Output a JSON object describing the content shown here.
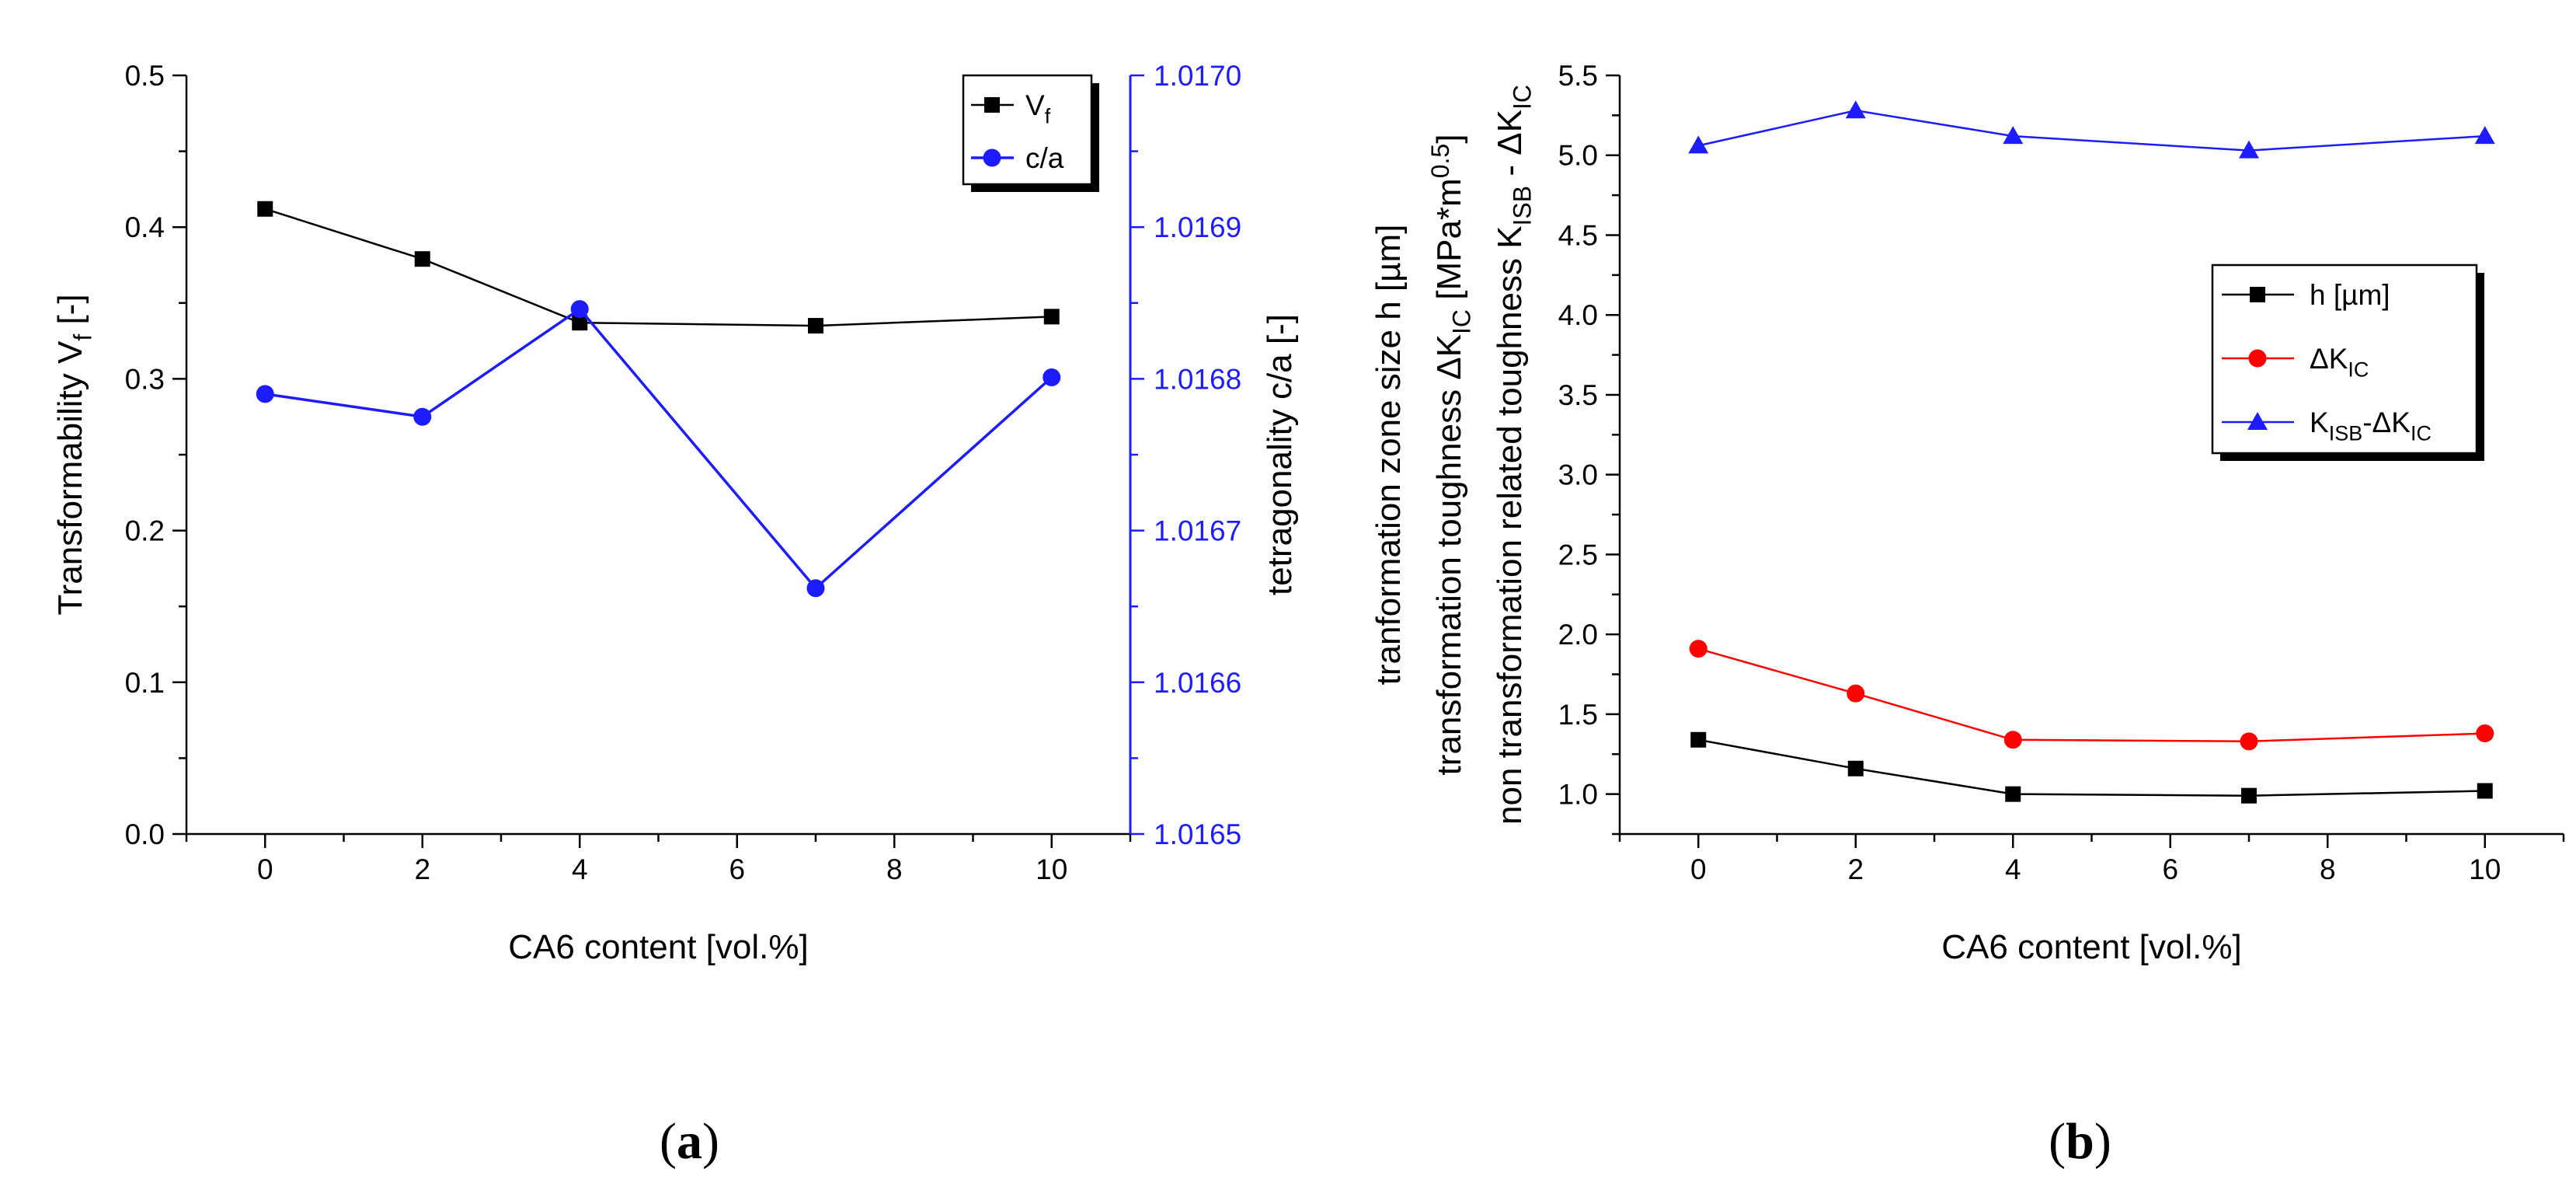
{
  "chart_data": [
    {
      "type": "line",
      "panel_label": {
        "open": "(",
        "letter": "a",
        "close": ")"
      },
      "xlabel": "CA6 content [vol.%]",
      "ylabel": {
        "main": "Transformability V",
        "sub": "f",
        "tail": " [-]"
      },
      "ylabel_right": "tetragonality c/a [-]",
      "x_ticks": [
        "0",
        "2",
        "4",
        "6",
        "8",
        "10"
      ],
      "y_ticks": [
        "0.0",
        "0.1",
        "0.2",
        "0.3",
        "0.4",
        "0.5"
      ],
      "y_ticks_right": [
        "1.0165",
        "1.0166",
        "1.0167",
        "1.0168",
        "1.0169",
        "1.0170"
      ],
      "xlim": [
        -1,
        11
      ],
      "ylim": [
        0,
        0.5
      ],
      "ylim_right": [
        1.0165,
        1.017
      ],
      "legend_position": "top-right",
      "series": [
        {
          "name": "V_f",
          "legend": {
            "main": "V",
            "sub": "f"
          },
          "axis": "left",
          "color": "#000000",
          "marker": "square",
          "x": [
            0,
            2,
            4,
            7,
            10
          ],
          "values": [
            0.412,
            0.379,
            0.337,
            0.335,
            0.341
          ]
        },
        {
          "name": "c/a",
          "legend": {
            "main": "c/a",
            "sub": ""
          },
          "axis": "right",
          "color": "#1c1cff",
          "marker": "circle",
          "x": [
            0,
            2,
            4,
            7,
            10
          ],
          "values": [
            1.01679,
            1.016775,
            1.016846,
            1.016662,
            1.016801
          ]
        }
      ]
    },
    {
      "type": "line",
      "panel_label": {
        "open": "(",
        "letter": "b",
        "close": ")"
      },
      "xlabel": "CA6 content [vol.%]",
      "ylabel_lines": [
        {
          "main": "tranformation zone size h [µm]",
          "sub1": "",
          "mid": "",
          "sub2": "",
          "tail": ""
        },
        {
          "main": "transformation toughness ΔK",
          "sub1": "IC",
          "mid": " [MPa*m",
          "sup": "0.5",
          "tail": "]"
        },
        {
          "main": "non transformation related toughness K",
          "sub1": "ISB",
          "mid": " - ΔK",
          "sub2": "IC",
          "tail": ""
        }
      ],
      "x_ticks": [
        "0",
        "2",
        "4",
        "6",
        "8",
        "10"
      ],
      "y_ticks": [
        "1.0",
        "1.5",
        "2.0",
        "2.5",
        "3.0",
        "3.5",
        "4.0",
        "4.5",
        "5.0",
        "5.5"
      ],
      "xlim": [
        -1,
        11
      ],
      "ylim": [
        0.75,
        5.5
      ],
      "legend_position": "right",
      "series": [
        {
          "name": "h [µm]",
          "legend": {
            "main": "h [µm]",
            "sub1": "",
            "mid": "",
            "sub2": ""
          },
          "color": "#000000",
          "marker": "square",
          "x": [
            0,
            2,
            4,
            7,
            10
          ],
          "values": [
            1.34,
            1.16,
            1.0,
            0.99,
            1.02
          ]
        },
        {
          "name": "ΔK_IC",
          "legend": {
            "main": "ΔK",
            "sub1": "IC",
            "mid": "",
            "sub2": ""
          },
          "color": "#ff0000",
          "marker": "circle",
          "x": [
            0,
            2,
            4,
            7,
            10
          ],
          "values": [
            1.91,
            1.63,
            1.34,
            1.33,
            1.38
          ]
        },
        {
          "name": "K_ISB-ΔK_IC",
          "legend": {
            "main": "K",
            "sub1": "ISB",
            "mid": "-ΔK",
            "sub2": "IC"
          },
          "color": "#1c1cff",
          "marker": "triangle",
          "x": [
            0,
            2,
            4,
            7,
            10
          ],
          "values": [
            5.06,
            5.28,
            5.12,
            5.03,
            5.12
          ]
        }
      ]
    }
  ]
}
